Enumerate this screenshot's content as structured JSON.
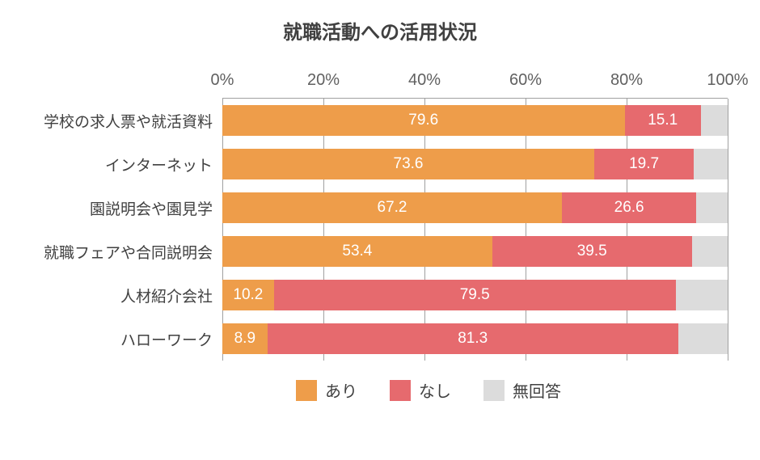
{
  "chart": {
    "type": "stacked-bar-horizontal",
    "title": "就職活動への活用状況",
    "title_fontsize": 24,
    "title_color": "#404040",
    "background_color": "#ffffff",
    "axis_color": "#a0a0a0",
    "gridline_color": "#a0a0a0",
    "label_color": "#404040",
    "value_label_color": "#ffffff",
    "label_fontsize": 19,
    "value_fontsize": 19,
    "bar_height_ratio": 0.7,
    "xlim": [
      0,
      100
    ],
    "xtick_step": 20,
    "x_unit": "%",
    "x_ticks": [
      {
        "value": 0,
        "label": "0%"
      },
      {
        "value": 20,
        "label": "20%"
      },
      {
        "value": 40,
        "label": "40%"
      },
      {
        "value": 60,
        "label": "60%"
      },
      {
        "value": 80,
        "label": "80%"
      },
      {
        "value": 100,
        "label": "100%"
      }
    ],
    "series": [
      {
        "key": "ari",
        "label": "あり",
        "color": "#ee9d4a"
      },
      {
        "key": "nashi",
        "label": "なし",
        "color": "#e66a6e"
      },
      {
        "key": "mukaito",
        "label": "無回答",
        "color": "#dcdcdc"
      }
    ],
    "categories": [
      {
        "label": "学校の求人票や就活資料",
        "values": {
          "ari": 79.6,
          "nashi": 15.1,
          "mukaito": 5.3
        },
        "show_label": {
          "ari": true,
          "nashi": true,
          "mukaito": false
        }
      },
      {
        "label": "インターネット",
        "values": {
          "ari": 73.6,
          "nashi": 19.7,
          "mukaito": 6.7
        },
        "show_label": {
          "ari": true,
          "nashi": true,
          "mukaito": false
        }
      },
      {
        "label": "園説明会や園見学",
        "values": {
          "ari": 67.2,
          "nashi": 26.6,
          "mukaito": 6.2
        },
        "show_label": {
          "ari": true,
          "nashi": true,
          "mukaito": false
        }
      },
      {
        "label": "就職フェアや合同説明会",
        "values": {
          "ari": 53.4,
          "nashi": 39.5,
          "mukaito": 7.1
        },
        "show_label": {
          "ari": true,
          "nashi": true,
          "mukaito": false
        }
      },
      {
        "label": "人材紹介会社",
        "values": {
          "ari": 10.2,
          "nashi": 79.5,
          "mukaito": 10.3
        },
        "show_label": {
          "ari": true,
          "nashi": true,
          "mukaito": false
        }
      },
      {
        "label": "ハローワーク",
        "values": {
          "ari": 8.9,
          "nashi": 81.3,
          "mukaito": 9.8
        },
        "show_label": {
          "ari": true,
          "nashi": true,
          "mukaito": false
        }
      }
    ]
  }
}
